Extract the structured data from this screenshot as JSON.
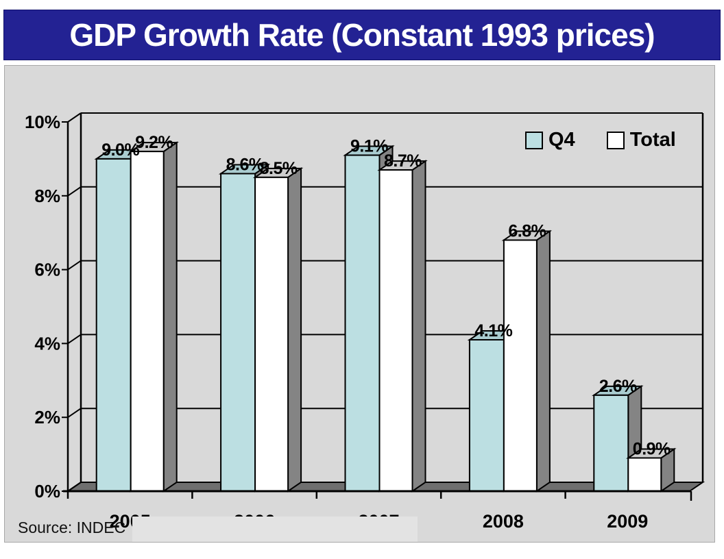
{
  "title": "GDP Growth Rate (Constant 1993 prices)",
  "source_note": "Source: INDEC",
  "chart_data": {
    "type": "bar",
    "style": "3d-clustered-column",
    "title": "GDP Growth Rate (Constant 1993 prices)",
    "categories": [
      "2005",
      "2006",
      "2007",
      "2008",
      "2009"
    ],
    "series": [
      {
        "name": "Q4",
        "color": "#bcdfe2",
        "values": [
          9.0,
          8.6,
          9.1,
          4.1,
          2.6
        ],
        "data_labels": [
          "9.0%",
          "8.6%",
          "9.1%",
          "4.1%",
          "2.6%"
        ]
      },
      {
        "name": "Total",
        "color": "#ffffff",
        "values": [
          9.2,
          8.5,
          8.7,
          6.8,
          0.9
        ],
        "data_labels": [
          "9.2%",
          "8.5%",
          "8.7%",
          "6.8%",
          "0.9%"
        ]
      }
    ],
    "xlabel": "",
    "ylabel": "",
    "ylim": [
      0,
      10
    ],
    "yticks": {
      "values": [
        0,
        2,
        4,
        6,
        8,
        10
      ],
      "labels": [
        "0%",
        "2%",
        "4%",
        "6%",
        "8%",
        "10%"
      ]
    },
    "grid": true,
    "legend_position": "top-right",
    "source": "Source: INDEC",
    "colors": {
      "background": "#d9d9d9",
      "title_band": "#232293",
      "title_text": "#ffffff",
      "floor": "#6f6f6f",
      "bar_side": "#848484",
      "bar_tops": [
        "#a9ccd0",
        "#cdcdcd"
      ],
      "outline": "#000000"
    }
  }
}
